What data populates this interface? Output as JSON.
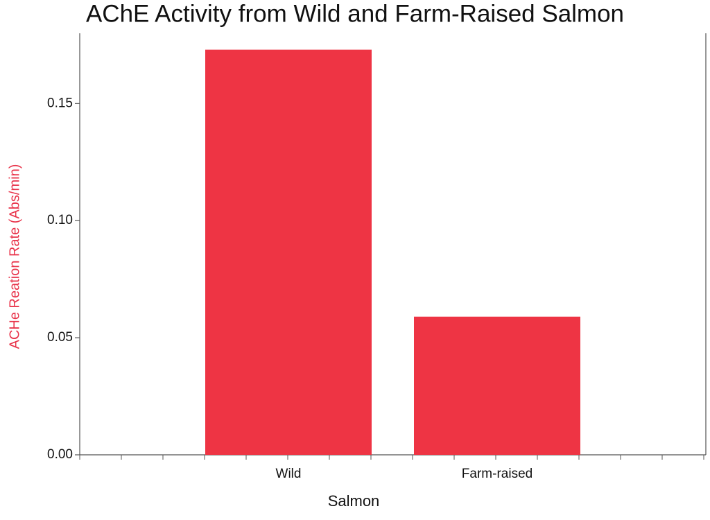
{
  "chart_data": {
    "type": "bar",
    "title": "AChE Activity from Wild and Farm-Raised Salmon",
    "x_label": "Salmon",
    "y_label": "ACHe Reation Rate  (Abs/min)",
    "categories": [
      "Wild",
      "Farm-raised"
    ],
    "values": [
      0.173,
      0.059
    ],
    "color": "#ee3444",
    "ylim": [
      0,
      0.18
    ],
    "yticks": [
      {
        "value": 0,
        "label": "0.00"
      },
      {
        "value": 0.05,
        "label": "0.05"
      },
      {
        "value": 0.1,
        "label": "0.10"
      },
      {
        "value": 0.15,
        "label": "0.15"
      }
    ],
    "grid": false
  }
}
